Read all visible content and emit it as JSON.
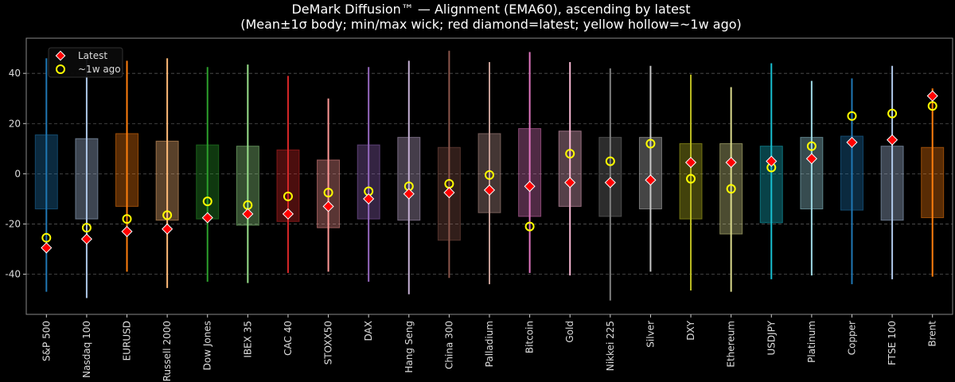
{
  "chart_data": {
    "type": "box",
    "title": "DeMark Diffusion™ — Alignment (EMA60), ascending by latest",
    "subtitle": "(Mean±1σ body; min/max wick; red diamond=latest; yellow hollow=~1w ago)",
    "xlabel": "",
    "ylabel": "",
    "ylim": [
      -56,
      54
    ],
    "yticks": [
      -40,
      -20,
      0,
      20,
      40
    ],
    "grid": "horizontal dashed",
    "legend": {
      "placement": "top-left",
      "entries": [
        "Latest",
        "~1w ago"
      ]
    },
    "colors": {
      "latest": "#ff0000",
      "week_ago": "#ffff00",
      "background": "#000000"
    },
    "categories": [
      "S&P 500",
      "Nasdaq 100",
      "EURUSD",
      "Russell 2000",
      "Dow Jones",
      "IBEX 35",
      "CAC 40",
      "STOXX50",
      "DAX",
      "Hang Seng",
      "China 300",
      "Palladium",
      "Bitcoin",
      "Gold",
      "Nikkei 225",
      "Silver",
      "DXY",
      "Ethereum",
      "USDJPY",
      "Platinum",
      "Copper",
      "FTSE 100",
      "Brent"
    ],
    "series_colors": [
      "#1f77b4",
      "#aec7e8",
      "#ff7f0e",
      "#ffbb78",
      "#2ca02c",
      "#98df8a",
      "#d62728",
      "#ff9896",
      "#9467bd",
      "#c5b0d5",
      "#8c564b",
      "#c49c94",
      "#e377c2",
      "#f7b6d2",
      "#7f7f7f",
      "#c7c7c7",
      "#bcbd22",
      "#dbdb8d",
      "#17becf",
      "#9edae5",
      "#1f77b4",
      "#aec7e8",
      "#ff7f0e"
    ],
    "max": [
      46,
      46,
      45,
      46,
      42.5,
      43.5,
      39,
      30,
      42.5,
      45,
      49,
      44.5,
      48.5,
      44.5,
      42,
      43,
      39.5,
      34.5,
      44,
      37,
      38,
      43,
      34
    ],
    "min": [
      -47,
      -49.5,
      -39,
      -45.5,
      -43,
      -43.5,
      -39.5,
      -39,
      -43,
      -48,
      -41.5,
      -44,
      -39.5,
      -40.5,
      -50.5,
      -39,
      -46.5,
      -47,
      -42,
      -40.5,
      -44,
      -42,
      -41
    ],
    "upper": [
      15.5,
      14,
      16,
      13,
      11.5,
      11,
      9.5,
      5.5,
      11.5,
      14.5,
      10.5,
      16,
      18,
      17,
      14.5,
      14.5,
      12,
      12,
      11,
      14.5,
      15,
      11,
      10.5
    ],
    "lower": [
      -14,
      -18,
      -13,
      -18.5,
      -18,
      -20.5,
      -19,
      -21.5,
      -18,
      -18.5,
      -26.5,
      -15.5,
      -17,
      -13,
      -17,
      -14,
      -18,
      -24,
      -19.5,
      -14,
      -14.5,
      -18.5,
      -17.5
    ],
    "latest": [
      -29.5,
      -26,
      -23,
      -22,
      -17.5,
      -16,
      -16,
      -13,
      -10,
      -8,
      -7.5,
      -6.5,
      -5,
      -3.5,
      -3.5,
      -2.5,
      4.5,
      4.5,
      5,
      6,
      12.5,
      13.5,
      31
    ],
    "week_ago": [
      -25.5,
      -21.5,
      -18,
      -16.5,
      -11,
      -12.5,
      -9,
      -7.5,
      -7,
      -5,
      -4,
      -0.5,
      -21,
      8,
      5,
      12,
      -2,
      -6,
      2.5,
      11,
      23,
      24,
      27
    ]
  }
}
